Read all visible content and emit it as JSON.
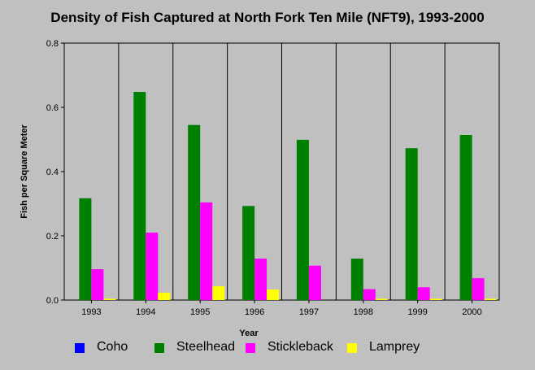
{
  "chart_data": {
    "type": "bar",
    "title": "Density of Fish Captured at North Fork Ten Mile (NFT9), 1993-2000",
    "xlabel": "Year",
    "ylabel": "Fish per Square Meter",
    "ylim": [
      0,
      0.8
    ],
    "yticks": [
      "0.0",
      "0.2",
      "0.4",
      "0.6",
      "0.8"
    ],
    "grid": "vertical lines between years",
    "legend_position": "bottom",
    "categories": [
      "1993",
      "1994",
      "1995",
      "1996",
      "1997",
      "1998",
      "1999",
      "2000"
    ],
    "series": [
      {
        "name": "Coho",
        "color": "#0000ff",
        "values": [
          0,
          0,
          0,
          0,
          0,
          0,
          0,
          0
        ]
      },
      {
        "name": "Steelhead",
        "color": "#008000",
        "values": [
          0.317,
          0.648,
          0.545,
          0.293,
          0.499,
          0.129,
          0.473,
          0.514
        ]
      },
      {
        "name": "Stickleback",
        "color": "#ff00ff",
        "values": [
          0.096,
          0.21,
          0.304,
          0.129,
          0.107,
          0.034,
          0.04,
          0.068
        ]
      },
      {
        "name": "Lamprey",
        "color": "#ffff00",
        "values": [
          0.004,
          0.023,
          0.043,
          0.033,
          0,
          0.004,
          0.004,
          0.004
        ]
      }
    ]
  }
}
